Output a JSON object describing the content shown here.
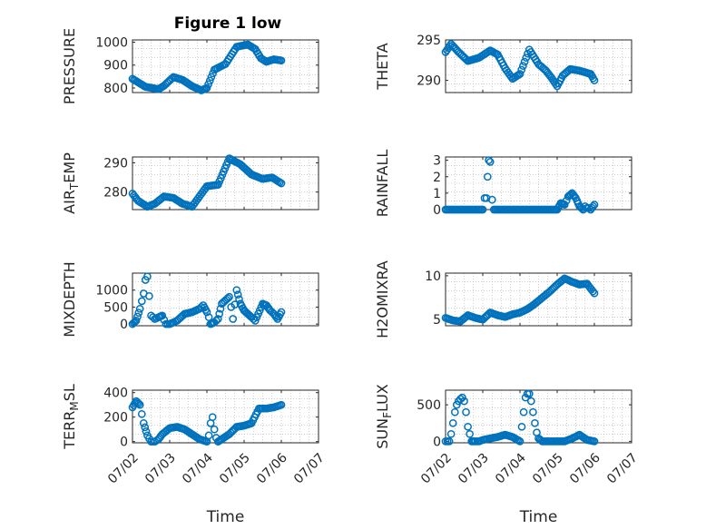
{
  "chart_data": {
    "type": "scatter",
    "title": "Figure 1 low",
    "xlabel": "Time",
    "x_ticks": [
      "07/02",
      "07/03",
      "07/04",
      "07/05",
      "07/06",
      "07/07"
    ],
    "xlim": [
      "07/02",
      "07/07"
    ],
    "marker": "open-circle",
    "grid": "minor-dotted",
    "colors": {
      "series": "#0072BD",
      "axis": "#262626",
      "grid": "#b0b0b0"
    },
    "panels": [
      {
        "ylabel": "PRESSURE",
        "ylim": [
          780,
          1010
        ],
        "yticks": [
          800,
          900,
          1000
        ],
        "ytick_labels": [
          "800",
          "900",
          "1000"
        ],
        "x_days": [
          0.0,
          0.35,
          0.7,
          0.85,
          1.1,
          1.35,
          1.6,
          1.85,
          2.0,
          2.2,
          2.5,
          2.8,
          3.1,
          3.3,
          3.45,
          3.6,
          3.8,
          4.0
        ],
        "y": [
          840,
          805,
          795,
          810,
          848,
          835,
          808,
          790,
          800,
          880,
          905,
          980,
          990,
          970,
          930,
          915,
          925,
          920
        ]
      },
      {
        "ylabel": "THETA",
        "ylim": [
          288.5,
          295
        ],
        "yticks": [
          290,
          295
        ],
        "ytick_labels": [
          "290",
          "295"
        ],
        "x_days": [
          0.0,
          0.15,
          0.35,
          0.6,
          0.9,
          1.2,
          1.4,
          1.6,
          1.8,
          2.0,
          2.25,
          2.5,
          2.7,
          2.85,
          3.0,
          3.15,
          3.35,
          3.6,
          3.9,
          4.0
        ],
        "y": [
          293.5,
          294.5,
          293.5,
          292.4,
          292.8,
          293.7,
          293.2,
          291.5,
          290.2,
          290.8,
          293.8,
          292.0,
          291.2,
          290.3,
          289.3,
          290.6,
          291.4,
          291.2,
          290.8,
          290.0
        ]
      },
      {
        "ylabel": "AIR_TEMP",
        "ylim": [
          274,
          292
        ],
        "yticks": [
          280,
          290
        ],
        "ytick_labels": [
          "280",
          "290"
        ],
        "x_days": [
          0.0,
          0.15,
          0.4,
          0.6,
          0.85,
          1.1,
          1.35,
          1.6,
          1.8,
          2.0,
          2.3,
          2.6,
          2.9,
          3.2,
          3.5,
          3.75,
          4.0
        ],
        "y": [
          279.5,
          277.0,
          275.0,
          276.0,
          278.5,
          278.0,
          276.0,
          275.0,
          278.5,
          282.0,
          282.5,
          291.5,
          289.5,
          286.0,
          284.5,
          285.0,
          283.0
        ]
      },
      {
        "ylabel": "RAINFALL",
        "ylim": [
          0,
          3.2
        ],
        "yticks": [
          0,
          1,
          2,
          3
        ],
        "ytick_labels": [
          "0",
          "1",
          "2",
          "3"
        ],
        "x_days": [
          0.0,
          1.0,
          1.05,
          1.1,
          1.13,
          1.16,
          1.2,
          1.25,
          1.3,
          2.0,
          3.0,
          3.1,
          3.2,
          3.3,
          3.4,
          3.5,
          3.6,
          3.7,
          3.75,
          3.8,
          3.85,
          3.9,
          4.0
        ],
        "y": [
          0,
          0,
          0.7,
          0.7,
          2.0,
          3.0,
          2.9,
          0.6,
          0,
          0,
          0,
          0.4,
          0.3,
          0.8,
          1.0,
          0.7,
          0.2,
          0,
          0.2,
          0.1,
          0.1,
          0,
          0.3
        ]
      },
      {
        "ylabel": "MIXDEPTH",
        "ylim": [
          -50,
          1500
        ],
        "yticks": [
          0,
          500,
          1000
        ],
        "ytick_labels": [
          "0",
          "500",
          "1000"
        ],
        "x_days": [
          0.0,
          0.1,
          0.2,
          0.3,
          0.35,
          0.4,
          0.5,
          0.6,
          0.7,
          0.8,
          0.9,
          1.0,
          1.1,
          1.2,
          1.4,
          1.6,
          1.8,
          1.9,
          2.0,
          2.05,
          2.1,
          2.2,
          2.3,
          2.4,
          2.6,
          2.65,
          2.7,
          2.8,
          2.9,
          3.0,
          3.1,
          3.2,
          3.3,
          3.5,
          3.6,
          3.7,
          3.8,
          3.9,
          4.0
        ],
        "y": [
          0,
          100,
          450,
          900,
          1300,
          1400,
          250,
          150,
          200,
          250,
          0,
          0,
          50,
          100,
          300,
          350,
          450,
          550,
          350,
          200,
          0,
          50,
          150,
          600,
          800,
          500,
          150,
          1000,
          600,
          400,
          300,
          200,
          100,
          600,
          550,
          400,
          300,
          150,
          350
        ]
      },
      {
        "ylabel": "H2OMIXRA",
        "ylim": [
          4.3,
          10.3
        ],
        "yticks": [
          5,
          10
        ],
        "ytick_labels": [
          "5",
          "10"
        ],
        "x_days": [
          0.0,
          0.2,
          0.4,
          0.6,
          0.8,
          1.0,
          1.2,
          1.4,
          1.6,
          1.8,
          2.0,
          2.2,
          2.4,
          2.6,
          2.8,
          3.0,
          3.2,
          3.4,
          3.6,
          3.8,
          4.0
        ],
        "y": [
          5.2,
          4.9,
          4.8,
          5.5,
          5.2,
          5.0,
          5.8,
          5.5,
          5.3,
          5.6,
          5.8,
          6.2,
          6.8,
          7.5,
          8.2,
          9.0,
          9.7,
          9.3,
          9.0,
          9.1,
          8.0
        ]
      },
      {
        "ylabel": "TERR_MSL",
        "ylim": [
          -10,
          420
        ],
        "yticks": [
          0,
          200,
          400
        ],
        "ytick_labels": [
          "0",
          "200",
          "400"
        ],
        "x_days": [
          0.0,
          0.1,
          0.2,
          0.3,
          0.4,
          0.5,
          0.6,
          0.7,
          0.8,
          1.0,
          1.2,
          1.4,
          1.6,
          1.8,
          2.0,
          2.05,
          2.1,
          2.15,
          2.2,
          2.25,
          2.3,
          2.4,
          2.6,
          2.8,
          3.0,
          3.2,
          3.4,
          3.6,
          3.8,
          4.0
        ],
        "y": [
          280,
          330,
          300,
          150,
          50,
          0,
          0,
          20,
          60,
          110,
          120,
          100,
          60,
          20,
          0,
          50,
          150,
          200,
          100,
          30,
          0,
          20,
          60,
          120,
          130,
          150,
          270,
          270,
          280,
          300
        ]
      },
      {
        "ylabel": "SUN_FLUX",
        "ylim": [
          -20,
          700
        ],
        "yticks": [
          0,
          500
        ],
        "ytick_labels": [
          "0",
          "500"
        ],
        "x_days": [
          0.0,
          0.05,
          0.1,
          0.15,
          0.2,
          0.25,
          0.3,
          0.35,
          0.4,
          0.45,
          0.5,
          0.55,
          0.6,
          0.7,
          0.8,
          0.9,
          1.0,
          1.2,
          1.4,
          1.6,
          1.8,
          2.0,
          2.05,
          2.1,
          2.15,
          2.2,
          2.25,
          2.3,
          2.35,
          2.4,
          2.45,
          2.5,
          2.6,
          2.8,
          3.0,
          3.2,
          3.4,
          3.6,
          3.8,
          4.0
        ],
        "y": [
          0,
          0,
          0,
          100,
          250,
          400,
          500,
          550,
          580,
          600,
          550,
          400,
          200,
          0,
          0,
          0,
          20,
          40,
          60,
          90,
          60,
          0,
          200,
          400,
          600,
          650,
          650,
          550,
          400,
          250,
          120,
          40,
          0,
          0,
          0,
          0,
          40,
          90,
          20,
          0
        ]
      }
    ]
  }
}
